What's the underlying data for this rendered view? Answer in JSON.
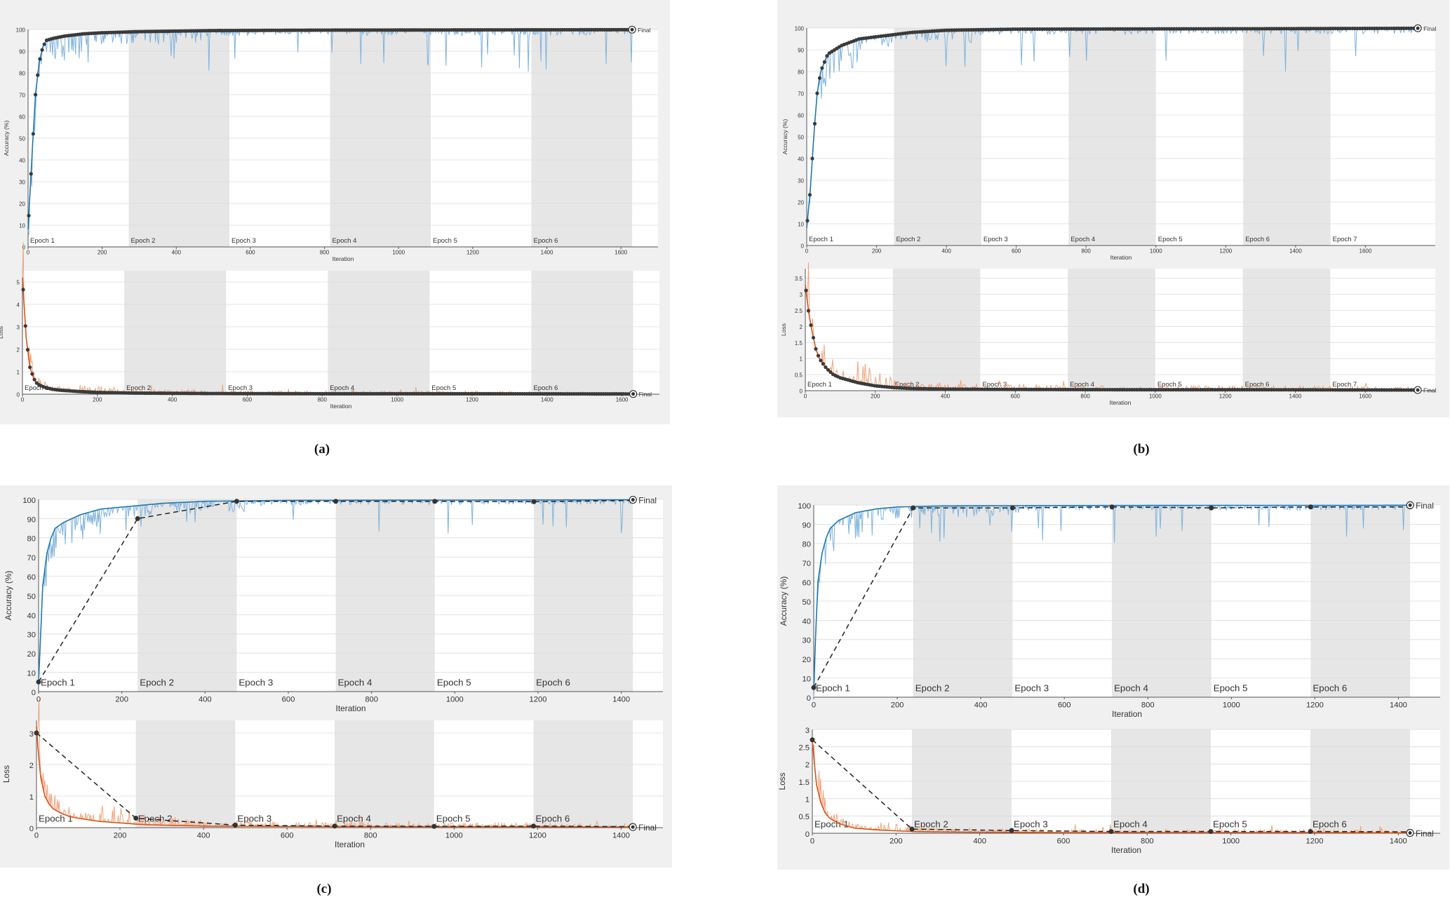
{
  "captions": [
    "(a)",
    "(b)",
    "(c)",
    "(d)"
  ],
  "chart_data": [
    {
      "id": "a",
      "type": "line",
      "style": "dense",
      "epochs": [
        "Epoch 1",
        "Epoch 2",
        "Epoch 3",
        "Epoch 4",
        "Epoch 5",
        "Epoch 6"
      ],
      "total_iterations": 1630,
      "accuracy": {
        "ylabel": "Accuracy (%)",
        "xlabel": "Iteration",
        "ylim": [
          0,
          100
        ],
        "yticks": [
          0,
          10,
          20,
          30,
          40,
          50,
          60,
          70,
          80,
          90,
          100
        ],
        "xlim": [
          0,
          1700
        ],
        "xticks": [
          0,
          200,
          400,
          600,
          800,
          1000,
          1200,
          1400,
          1600
        ],
        "series": [
          {
            "x": [
              0,
              10,
              20,
              30,
              40,
              50,
              70,
              100,
              150,
              200,
              300,
              500,
              800,
              1200,
              1630
            ],
            "y": [
              8,
              40,
              70,
              85,
              92,
              95,
              96,
              97,
              98,
              98.5,
              99,
              99.5,
              99.7,
              99.8,
              99.9
            ]
          }
        ],
        "final_label": "Final"
      },
      "loss": {
        "ylabel": "Loss",
        "xlabel": "Iteration",
        "ylim": [
          0,
          5.5
        ],
        "yticks": [
          0,
          1,
          2,
          3,
          4,
          5
        ],
        "xlim": [
          0,
          1700
        ],
        "xticks": [
          0,
          200,
          400,
          600,
          800,
          1000,
          1200,
          1400,
          1600
        ],
        "series": [
          {
            "x": [
              0,
              10,
              20,
              30,
              40,
              60,
              80,
              100,
              150,
              200,
              300,
              500,
              800,
              1200,
              1630
            ],
            "y": [
              5.2,
              2.5,
              1.2,
              0.7,
              0.45,
              0.3,
              0.22,
              0.18,
              0.12,
              0.08,
              0.05,
              0.03,
              0.02,
              0.02,
              0.01
            ]
          }
        ],
        "final_label": "Final"
      }
    },
    {
      "id": "b",
      "type": "line",
      "style": "dense",
      "epochs": [
        "Epoch 1",
        "Epoch 2",
        "Epoch 3",
        "Epoch 4",
        "Epoch 5",
        "Epoch 6",
        "Epoch 7"
      ],
      "total_iterations": 1750,
      "accuracy": {
        "ylabel": "Accuracy (%)",
        "xlabel": "Iteration",
        "ylim": [
          0,
          100
        ],
        "yticks": [
          0,
          10,
          20,
          30,
          40,
          50,
          60,
          70,
          80,
          90,
          100
        ],
        "xlim": [
          0,
          1800
        ],
        "xticks": [
          0,
          200,
          400,
          600,
          800,
          1000,
          1200,
          1400,
          1600
        ],
        "series": [
          {
            "x": [
              0,
              10,
              20,
              30,
              40,
              60,
              80,
              100,
              150,
              200,
              250,
              300,
              400,
              600,
              900,
              1300,
              1750
            ],
            "y": [
              8,
              25,
              50,
              70,
              80,
              88,
              90,
              92,
              95,
              96,
              97,
              98,
              99,
              99.5,
              99.6,
              99.7,
              99.9
            ]
          }
        ],
        "final_label": "Final"
      },
      "loss": {
        "ylabel": "Loss",
        "xlabel": "Iteration",
        "ylim": [
          0,
          3.8
        ],
        "yticks": [
          0,
          0.5,
          1,
          1.5,
          2,
          2.5,
          3,
          3.5
        ],
        "xlim": [
          0,
          1800
        ],
        "xticks": [
          0,
          200,
          400,
          600,
          800,
          1000,
          1200,
          1400,
          1600
        ],
        "series": [
          {
            "x": [
              0,
              10,
              20,
              30,
              40,
              60,
              80,
              100,
              150,
              200,
              250,
              300,
              400,
              600,
              900,
              1300,
              1750
            ],
            "y": [
              3.3,
              2.4,
              1.8,
              1.3,
              1.0,
              0.7,
              0.5,
              0.4,
              0.25,
              0.15,
              0.1,
              0.07,
              0.05,
              0.04,
              0.03,
              0.03,
              0.02
            ]
          }
        ],
        "final_label": "Final"
      }
    },
    {
      "id": "c",
      "type": "line",
      "style": "sparse",
      "epochs": [
        "Epoch 1",
        "Epoch 2",
        "Epoch 3",
        "Epoch 4",
        "Epoch 5",
        "Epoch 6"
      ],
      "total_iterations": 1428,
      "accuracy": {
        "ylabel": "Accuracy (%)",
        "xlabel": "Iteration",
        "ylim": [
          0,
          100
        ],
        "yticks": [
          0,
          10,
          20,
          30,
          40,
          50,
          60,
          70,
          80,
          90,
          100
        ],
        "xlim": [
          0,
          1500
        ],
        "xticks": [
          0,
          200,
          400,
          600,
          800,
          1000,
          1200,
          1400
        ],
        "series": [
          {
            "x": [
              0,
              5,
              10,
              20,
              30,
              40,
              60,
              80,
              100,
              150,
              200,
              250,
              300,
              400,
              600,
              900,
              1200,
              1428
            ],
            "y": [
              5,
              30,
              55,
              72,
              80,
              85,
              88,
              90,
              92,
              95,
              96,
              97,
              98,
              99,
              99.5,
              99.6,
              99.7,
              99.8
            ]
          }
        ],
        "validation": {
          "x": [
            0,
            238,
            476,
            714,
            952,
            1190,
            1428
          ],
          "y": [
            5,
            90,
            99,
            99,
            99,
            98.8,
            99.5
          ]
        },
        "final_label": "Final"
      },
      "loss": {
        "ylabel": "Loss",
        "xlabel": "Iteration",
        "ylim": [
          0,
          3.4
        ],
        "yticks": [
          0,
          1,
          2,
          3
        ],
        "xlim": [
          0,
          1500
        ],
        "xticks": [
          0,
          200,
          400,
          600,
          800,
          1000,
          1200,
          1400
        ],
        "series": [
          {
            "x": [
              0,
              5,
              10,
              20,
              30,
              40,
              60,
              80,
              100,
              150,
              200,
              250,
              300,
              400,
              600,
              900,
              1200,
              1428
            ],
            "y": [
              3.2,
              2.3,
              1.6,
              1.0,
              0.75,
              0.6,
              0.45,
              0.35,
              0.3,
              0.2,
              0.15,
              0.1,
              0.08,
              0.05,
              0.04,
              0.03,
              0.03,
              0.02
            ]
          }
        ],
        "validation": {
          "x": [
            0,
            238,
            476,
            714,
            952,
            1190,
            1428
          ],
          "y": [
            3.0,
            0.3,
            0.08,
            0.05,
            0.04,
            0.05,
            0.03
          ]
        },
        "final_label": "Final"
      }
    },
    {
      "id": "d",
      "type": "line",
      "style": "sparse",
      "epochs": [
        "Epoch 1",
        "Epoch 2",
        "Epoch 3",
        "Epoch 4",
        "Epoch 5",
        "Epoch 6"
      ],
      "total_iterations": 1428,
      "accuracy": {
        "ylabel": "Accuracy (%)",
        "xlabel": "Iteration",
        "ylim": [
          0,
          100
        ],
        "yticks": [
          0,
          10,
          20,
          30,
          40,
          50,
          60,
          70,
          80,
          90,
          100
        ],
        "xlim": [
          0,
          1500
        ],
        "xticks": [
          0,
          200,
          400,
          600,
          800,
          1000,
          1200,
          1400
        ],
        "series": [
          {
            "x": [
              0,
              5,
              10,
              20,
              30,
              40,
              60,
              80,
              100,
              150,
              200,
              250,
              300,
              400,
              600,
              900,
              1200,
              1428
            ],
            "y": [
              5,
              35,
              60,
              75,
              83,
              88,
              92,
              94,
              96,
              98,
              99,
              99.2,
              99.5,
              99.6,
              99.7,
              99.8,
              99.8,
              99.9
            ]
          }
        ],
        "validation": {
          "x": [
            0,
            238,
            476,
            714,
            952,
            1190,
            1428
          ],
          "y": [
            5,
            98.5,
            98.5,
            99,
            98.5,
            99,
            99
          ]
        },
        "final_label": "Final"
      },
      "loss": {
        "ylabel": "Loss",
        "xlabel": "Iteration",
        "ylim": [
          0,
          3
        ],
        "yticks": [
          0,
          0.5,
          1,
          1.5,
          2,
          2.5,
          3
        ],
        "xlim": [
          0,
          1500
        ],
        "xticks": [
          0,
          200,
          400,
          600,
          800,
          1000,
          1200,
          1400
        ],
        "series": [
          {
            "x": [
              0,
              5,
              10,
              20,
              30,
              40,
              60,
              80,
              100,
              150,
              200,
              250,
              300,
              400,
              600,
              900,
              1200,
              1428
            ],
            "y": [
              2.7,
              2.0,
              1.4,
              0.9,
              0.6,
              0.45,
              0.3,
              0.22,
              0.15,
              0.1,
              0.07,
              0.05,
              0.04,
              0.03,
              0.02,
              0.02,
              0.02,
              0.01
            ]
          }
        ],
        "validation": {
          "x": [
            0,
            238,
            476,
            714,
            952,
            1190,
            1428
          ],
          "y": [
            2.7,
            0.12,
            0.08,
            0.05,
            0.05,
            0.05,
            0.04
          ]
        },
        "final_label": "Final"
      }
    }
  ]
}
